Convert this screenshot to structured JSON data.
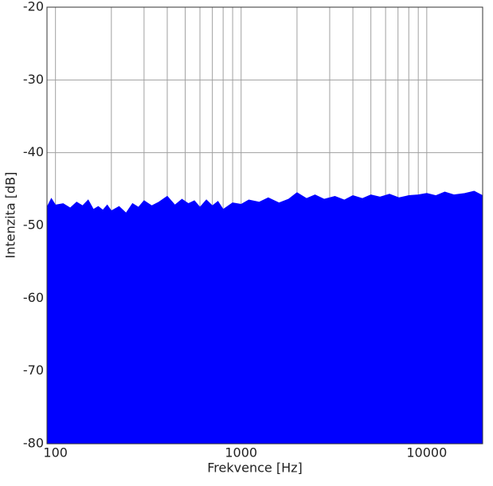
{
  "chart_data": {
    "type": "area",
    "xlabel": "Frekvence [Hz]",
    "ylabel": "Intenzita [dB]",
    "xscale": "log",
    "xlim": [
      90,
      20000
    ],
    "xticks": [
      100,
      1000,
      10000
    ],
    "xminor": [
      200,
      300,
      400,
      500,
      600,
      700,
      800,
      900,
      2000,
      3000,
      4000,
      5000,
      6000,
      7000,
      8000,
      9000
    ],
    "ylim": [
      -80,
      -20
    ],
    "yticks": [
      -80,
      -70,
      -60,
      -50,
      -40,
      -30,
      -20
    ],
    "grid": true,
    "series": [
      {
        "color": "#0000ff",
        "x": [
          90,
          95,
          100,
          110,
          120,
          130,
          140,
          150,
          160,
          170,
          180,
          190,
          200,
          220,
          240,
          260,
          280,
          300,
          330,
          360,
          400,
          440,
          480,
          520,
          560,
          600,
          650,
          700,
          750,
          800,
          900,
          1000,
          1100,
          1250,
          1400,
          1600,
          1800,
          2000,
          2250,
          2500,
          2800,
          3200,
          3600,
          4000,
          4500,
          5000,
          5600,
          6300,
          7100,
          8000,
          9000,
          10000,
          11200,
          12500,
          14000,
          16000,
          18000,
          20000
        ],
        "values": [
          -47.5,
          -46.3,
          -47.2,
          -47.0,
          -47.6,
          -46.8,
          -47.3,
          -46.5,
          -47.8,
          -47.4,
          -47.9,
          -47.2,
          -48.0,
          -47.4,
          -48.3,
          -47.0,
          -47.5,
          -46.6,
          -47.3,
          -46.8,
          -46.0,
          -47.2,
          -46.4,
          -47.0,
          -46.6,
          -47.5,
          -46.5,
          -47.3,
          -46.7,
          -47.8,
          -46.9,
          -47.1,
          -46.5,
          -46.8,
          -46.2,
          -46.9,
          -46.4,
          -45.5,
          -46.3,
          -45.8,
          -46.4,
          -46.0,
          -46.5,
          -45.9,
          -46.3,
          -45.8,
          -46.1,
          -45.7,
          -46.2,
          -45.9,
          -45.8,
          -45.6,
          -45.9,
          -45.4,
          -45.8,
          -45.6,
          -45.3,
          -45.9
        ]
      }
    ]
  }
}
